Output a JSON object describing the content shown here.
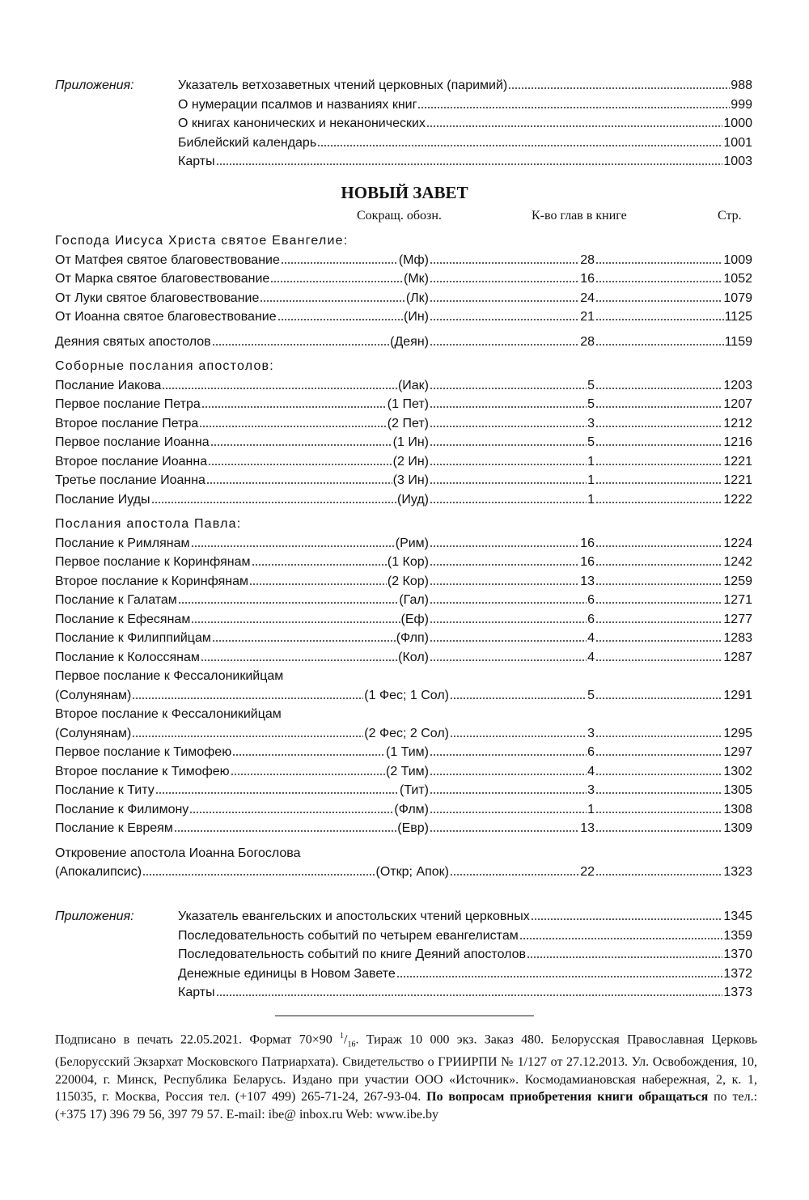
{
  "ot_appendix": {
    "label": "Приложения:",
    "items": [
      {
        "name": "Указатель ветхозаветных чтений церковных (паримий)",
        "page": "988"
      },
      {
        "name": "О нумерации псалмов и названиях книг",
        "page": "999"
      },
      {
        "name": "О книгах канонических и неканонических",
        "page": "1000"
      },
      {
        "name": "Библейский календарь",
        "page": "1001"
      },
      {
        "name": "Карты",
        "page": "1003"
      }
    ]
  },
  "title": "НОВЫЙ ЗАВЕТ",
  "headers": {
    "abbr": "Сокращ. обозн.",
    "chapters": "К-во глав в книге",
    "page": "Стр."
  },
  "groups": [
    {
      "heading": "Господа Иисуса Христа святое Евангелие:",
      "rows": [
        {
          "name": "От Матфея святое благовествование",
          "abbr": "(Мф)",
          "chapters": "28",
          "page": "1009"
        },
        {
          "name": "От Марка святое благовествование",
          "abbr": "(Мк)",
          "chapters": "16",
          "page": "1052"
        },
        {
          "name": "От Луки святое благовествование",
          "abbr": "(Лк)",
          "chapters": "24",
          "page": "1079"
        },
        {
          "name": "От Иоанна святое благовествование",
          "abbr": "(Ин)",
          "chapters": "21",
          "page": "1125"
        }
      ]
    },
    {
      "heading": "",
      "rows": [
        {
          "name": "Деяния святых апостолов",
          "abbr": "(Деян)",
          "chapters": "28",
          "page": "1159"
        }
      ]
    },
    {
      "heading": "Соборные послания апостолов:",
      "rows": [
        {
          "name": "Послание Иакова",
          "abbr": "(Иак)",
          "chapters": "5",
          "page": "1203"
        },
        {
          "name": "Первое послание Петра",
          "abbr": "(1 Пет)",
          "chapters": "5",
          "page": "1207"
        },
        {
          "name": "Второе послание Петра",
          "abbr": "(2 Пет)",
          "chapters": "3",
          "page": "1212"
        },
        {
          "name": "Первое послание Иоанна",
          "abbr": "(1 Ин)",
          "chapters": "5",
          "page": "1216"
        },
        {
          "name": "Второе послание Иоанна",
          "abbr": "(2 Ин)",
          "chapters": "1",
          "page": "1221"
        },
        {
          "name": "Третье послание Иоанна",
          "abbr": "(3 Ин)",
          "chapters": "1",
          "page": "1221"
        },
        {
          "name": "Послание Иуды",
          "abbr": "(Иуд)",
          "chapters": "1",
          "page": "1222"
        }
      ]
    },
    {
      "heading": "Послания апостола Павла:",
      "rows": [
        {
          "name": "Послание к Римлянам",
          "abbr": "(Рим)",
          "chapters": "16",
          "page": "1224"
        },
        {
          "name": "Первое послание к Коринфянам",
          "abbr": "(1 Кор)",
          "chapters": "16",
          "page": "1242"
        },
        {
          "name": "Второе послание к Коринфянам",
          "abbr": "(2 Кор)",
          "chapters": "13",
          "page": "1259"
        },
        {
          "name": "Послание к Галатам",
          "abbr": "(Гал)",
          "chapters": "6",
          "page": "1271"
        },
        {
          "name": "Послание к Ефесянам",
          "abbr": "(Еф)",
          "chapters": "6",
          "page": "1277"
        },
        {
          "name": "Послание к Филиппийцам",
          "abbr": "(Флп)",
          "chapters": "4",
          "page": "1283"
        },
        {
          "name": "Послание к Колоссянам",
          "abbr": "(Кол)",
          "chapters": "4",
          "page": "1287"
        },
        {
          "pre": "Первое послание к Фессалоникийцам",
          "name": "(Солунянам)",
          "abbr": "(1 Фес; 1 Сол)",
          "chapters": "5",
          "page": "1291"
        },
        {
          "pre": "Второе послание к Фессалоникийцам",
          "name": "(Солунянам)",
          "abbr": "(2 Фес; 2 Сол)",
          "chapters": "3",
          "page": "1295"
        },
        {
          "name": "Первое послание к Тимофею",
          "abbr": "(1 Тим)",
          "chapters": "6",
          "page": "1297"
        },
        {
          "name": "Второе послание к Тимофею",
          "abbr": "(2 Тим)",
          "chapters": "4",
          "page": "1302"
        },
        {
          "name": "Послание к Титу",
          "abbr": "(Тит)",
          "chapters": "3",
          "page": "1305"
        },
        {
          "name": "Послание к Филимону",
          "abbr": "(Флм)",
          "chapters": "1",
          "page": "1308"
        },
        {
          "name": "Послание к Евреям",
          "abbr": "(Евр)",
          "chapters": "13",
          "page": "1309"
        }
      ]
    },
    {
      "heading": "",
      "rows": [
        {
          "pre": "Откровение апостола Иоанна Богослова",
          "name": "(Апокалипсис)",
          "abbr": "(Откр; Апок)",
          "chapters": "22",
          "page": "1323"
        }
      ]
    }
  ],
  "nt_appendix": {
    "label": "Приложения:",
    "items": [
      {
        "name": "Указатель евангельских и апостольских чтений церковных",
        "page": "1345"
      },
      {
        "name": "Последовательность событий по четырем евангелистам",
        "page": "1359"
      },
      {
        "name": "Последовательность событий по книге Деяний апостолов",
        "page": "1370"
      },
      {
        "name": "Денежные единицы в Новом Завете",
        "page": "1372"
      },
      {
        "name": "Карты",
        "page": "1373"
      }
    ]
  },
  "footer": {
    "text1": "Подписано в печать 22.05.2021. Формат 70×90 ",
    "frac_num": "1",
    "frac_den": "16",
    "text2": ". Тираж 10 000 экз. Заказ 480. Белорусская Православная Церковь (Белорусский Экзархат Московского Патриархата). Свидетельство о ГРИИРПИ № 1/127 от 27.12.2013. Ул. Освобождения, 10, 220004, г. Минск, Республика Беларусь. Издано при участии ООО «Источник». Космодамиановская набережная, 2, к. 1, 115035, г. Москва, Россия тел. (+107 499) 265-71-24, 267-93-04. ",
    "bold": "По вопросам приобретения книги обращаться",
    "text3": " по тел.: (+375 17) 396 79 56, 397 79 57. E-mail: ibe@ inbox.ru  Web: www.ibe.by"
  }
}
